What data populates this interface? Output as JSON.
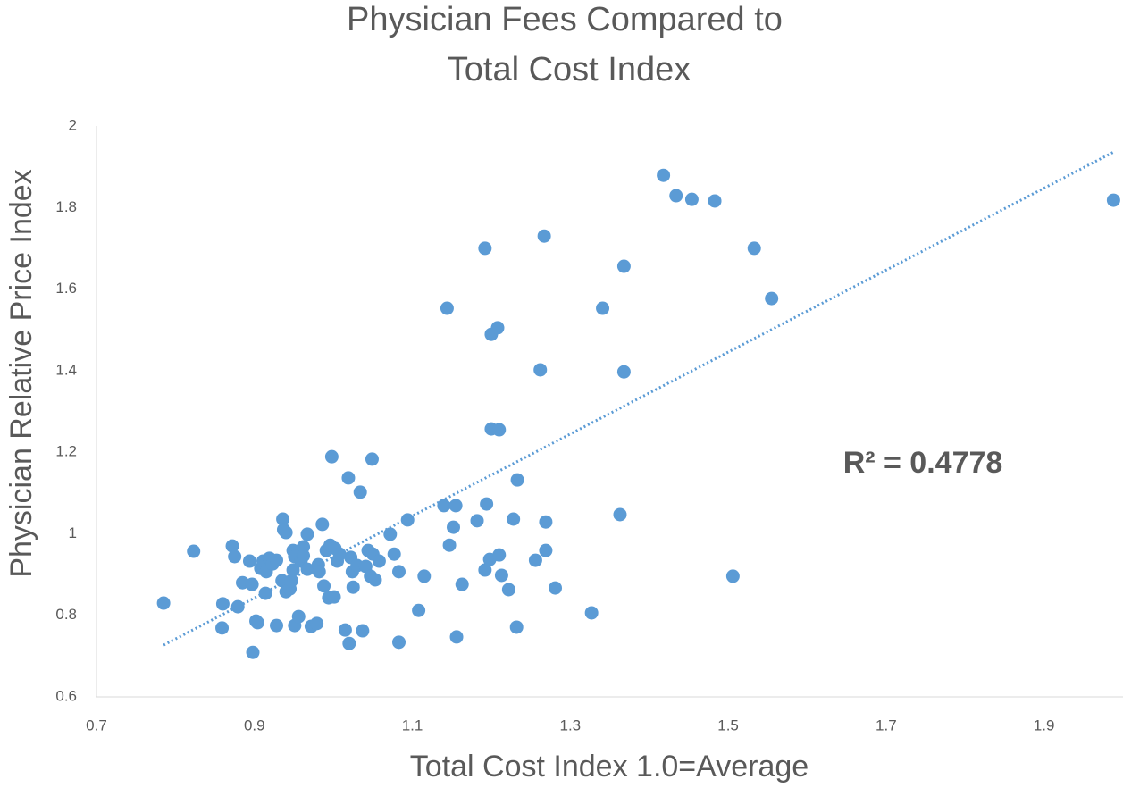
{
  "chart_data": {
    "type": "scatter",
    "title": [
      "Physician Fees Compared to",
      "Total Cost Index"
    ],
    "x_label": "Total Cost Index 1.0=Average",
    "y_label": "Physician Relative Price Index",
    "annotation": "R² = 0.4778",
    "color": "#5b9bd5",
    "xlim": [
      0.7,
      2.0
    ],
    "xticks": [
      0.7,
      0.9,
      1.1,
      1.3,
      1.5,
      1.7,
      1.9
    ],
    "ylim": [
      0.6,
      2
    ],
    "yticks": [
      0.6,
      0.8,
      1,
      1.2,
      1.4,
      1.6,
      1.8,
      2
    ],
    "grid": false,
    "trendline": {
      "x": [
        0.785,
        1.988
      ],
      "y": [
        0.727,
        1.936
      ]
    },
    "x": [
      0.785,
      0.823,
      0.86,
      0.859,
      0.872,
      0.875,
      0.879,
      0.885,
      0.894,
      0.897,
      0.898,
      0.902,
      0.904,
      0.908,
      0.911,
      0.915,
      0.914,
      0.919,
      0.923,
      0.928,
      0.928,
      0.936,
      0.937,
      0.94,
      0.935,
      0.94,
      0.945,
      0.947,
      0.949,
      0.951,
      0.949,
      0.951,
      0.956,
      0.959,
      0.962,
      0.962,
      0.967,
      0.967,
      0.972,
      0.979,
      0.981,
      0.982,
      0.986,
      0.988,
      0.991,
      0.994,
      0.996,
      0.998,
      1.001,
      1.002,
      1.005,
      1.008,
      1.015,
      1.019,
      1.02,
      1.022,
      1.024,
      1.025,
      1.03,
      1.034,
      1.037,
      1.041,
      1.044,
      1.047,
      1.049,
      1.05,
      1.053,
      1.058,
      1.072,
      1.077,
      1.083,
      1.083,
      1.094,
      1.108,
      1.115,
      1.14,
      1.147,
      1.144,
      1.152,
      1.155,
      1.156,
      1.163,
      1.182,
      1.192,
      1.192,
      1.194,
      1.198,
      1.2,
      1.2,
      1.208,
      1.21,
      1.21,
      1.213,
      1.222,
      1.228,
      1.233,
      1.232,
      1.256,
      1.262,
      1.267,
      1.269,
      1.269,
      1.281,
      1.327,
      1.341,
      1.363,
      1.368,
      1.368,
      1.418,
      1.434,
      1.454,
      1.483,
      1.506,
      1.533,
      1.555,
      1.988
    ],
    "values": [
      0.83,
      0.957,
      0.828,
      0.769,
      0.97,
      0.944,
      0.821,
      0.88,
      0.933,
      0.876,
      0.709,
      0.786,
      0.782,
      0.915,
      0.933,
      0.907,
      0.854,
      0.94,
      0.926,
      0.935,
      0.775,
      1.036,
      1.01,
      1.003,
      0.885,
      0.858,
      0.865,
      0.885,
      0.959,
      0.944,
      0.911,
      0.775,
      0.797,
      0.933,
      0.968,
      0.946,
      0.999,
      0.913,
      0.773,
      0.78,
      0.924,
      0.907,
      1.023,
      0.872,
      0.959,
      0.843,
      0.972,
      1.189,
      0.845,
      0.964,
      0.933,
      0.95,
      0.764,
      1.137,
      0.731,
      0.942,
      0.907,
      0.869,
      0.922,
      1.102,
      0.762,
      0.92,
      0.959,
      0.896,
      1.183,
      0.95,
      0.887,
      0.933,
      0.999,
      0.95,
      0.907,
      0.734,
      1.034,
      0.812,
      0.896,
      1.069,
      0.972,
      1.553,
      1.016,
      1.069,
      0.747,
      0.876,
      1.032,
      1.7,
      0.911,
      1.073,
      0.937,
      1.489,
      1.257,
      1.505,
      0.948,
      1.255,
      0.898,
      0.863,
      1.036,
      1.132,
      0.771,
      0.935,
      1.402,
      1.73,
      1.029,
      0.959,
      0.867,
      0.806,
      1.553,
      1.047,
      1.656,
      1.397,
      1.879,
      1.829,
      1.82,
      1.816,
      0.896,
      1.7,
      1.577,
      1.818
    ]
  }
}
